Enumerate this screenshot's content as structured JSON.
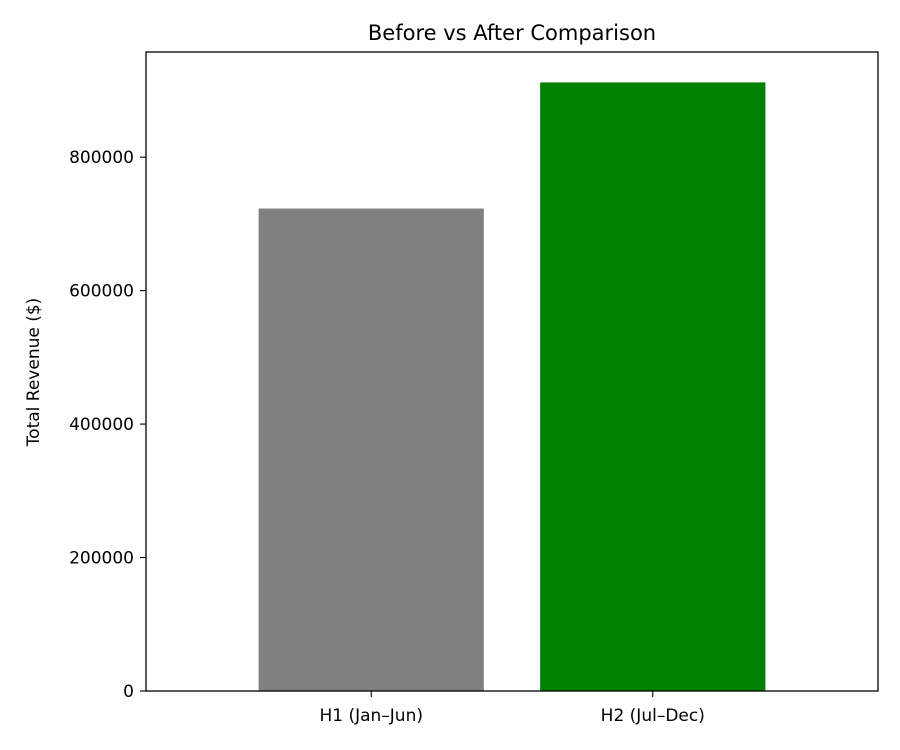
{
  "chart_data": {
    "type": "bar",
    "title": "Before vs After Comparison",
    "xlabel": "",
    "ylabel": "Total Revenue ($)",
    "categories": [
      "H1 (Jan–Jun)",
      "H2 (Jul–Dec)"
    ],
    "values": [
      723000,
      912000
    ],
    "colors": [
      "#808080",
      "#008000"
    ],
    "ylim": [
      0,
      957600
    ],
    "yticks": [
      0,
      200000,
      400000,
      600000,
      800000
    ],
    "ytick_labels": [
      "0",
      "200000",
      "400000",
      "600000",
      "800000"
    ],
    "grid": false,
    "legend": "none"
  }
}
